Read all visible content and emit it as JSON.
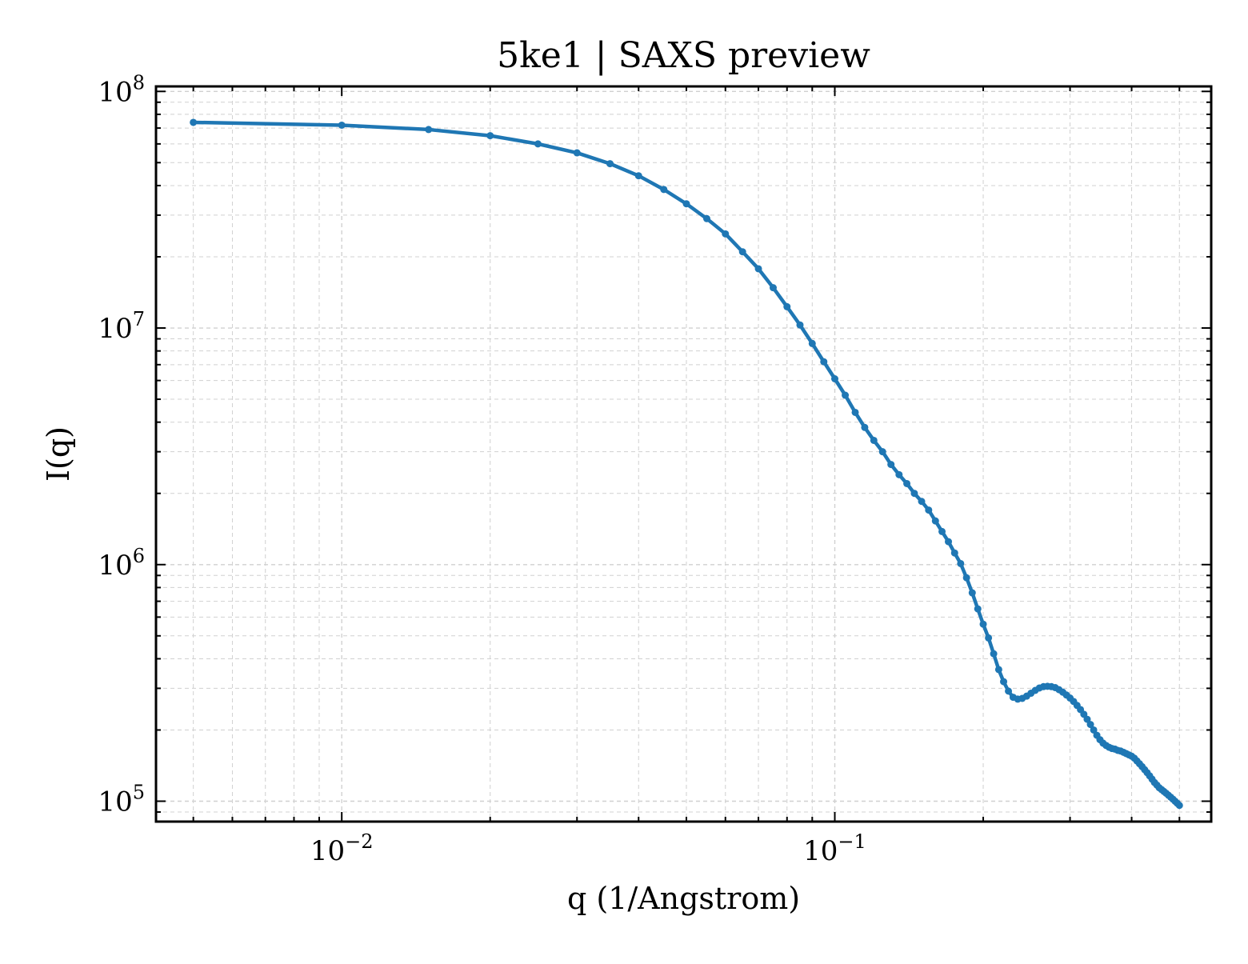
{
  "chart_data": {
    "type": "line",
    "title": "5ke1 | SAXS preview",
    "xlabel": "q (1/Angstrom)",
    "ylabel": "I(q)",
    "xscale": "log",
    "yscale": "log",
    "xlim": [
      0.0042,
      0.58
    ],
    "ylim": [
      82000,
      105000000
    ],
    "grid": true,
    "legend": "none",
    "colors": {
      "series": "#1f77b4",
      "grid": "#d0d0d0",
      "axes": "#000000"
    },
    "x_ticks": [
      {
        "value": 0.01,
        "base": "10",
        "exp": "−2"
      },
      {
        "value": 0.1,
        "base": "10",
        "exp": "−1"
      }
    ],
    "y_ticks": [
      {
        "value": 100000,
        "base": "10",
        "exp": "5"
      },
      {
        "value": 1000000,
        "base": "10",
        "exp": "6"
      },
      {
        "value": 10000000,
        "base": "10",
        "exp": "7"
      },
      {
        "value": 100000000,
        "base": "10",
        "exp": "8"
      }
    ],
    "series": [
      {
        "x": [
          0.005,
          0.01,
          0.015,
          0.02,
          0.025,
          0.03,
          0.035,
          0.04,
          0.045,
          0.05,
          0.055,
          0.06,
          0.065,
          0.07,
          0.075,
          0.08,
          0.085,
          0.09,
          0.095,
          0.1,
          0.105,
          0.11,
          0.115,
          0.12,
          0.125,
          0.13,
          0.135,
          0.14,
          0.145,
          0.15,
          0.155,
          0.16,
          0.165,
          0.17,
          0.175,
          0.18,
          0.185,
          0.19,
          0.195,
          0.2,
          0.205,
          0.21,
          0.215,
          0.22,
          0.225,
          0.23,
          0.235,
          0.24,
          0.245,
          0.25,
          0.255,
          0.26,
          0.265,
          0.27,
          0.275,
          0.28,
          0.285,
          0.29,
          0.295,
          0.3,
          0.305,
          0.31,
          0.315,
          0.32,
          0.325,
          0.33,
          0.335,
          0.34,
          0.345,
          0.35,
          0.355,
          0.36,
          0.365,
          0.37,
          0.375,
          0.38,
          0.385,
          0.39,
          0.395,
          0.4,
          0.405,
          0.41,
          0.415,
          0.42,
          0.425,
          0.43,
          0.435,
          0.44,
          0.445,
          0.45,
          0.455,
          0.46,
          0.465,
          0.47,
          0.475,
          0.48,
          0.485,
          0.49,
          0.495,
          0.5
        ],
        "y": [
          74000000,
          72000000,
          69000000,
          65000000,
          60000000,
          55000000,
          49500000,
          44000000,
          38500000,
          33500000,
          29000000,
          25000000,
          21000000,
          17800000,
          14800000,
          12300000,
          10300000,
          8600000,
          7200000,
          6100000,
          5200000,
          4400000,
          3800000,
          3350000,
          3000000,
          2650000,
          2400000,
          2200000,
          2000000,
          1850000,
          1700000,
          1530000,
          1380000,
          1250000,
          1120000,
          1010000,
          880000,
          760000,
          650000,
          560000,
          490000,
          420000,
          360000,
          320000,
          292000,
          275000,
          270000,
          272000,
          278000,
          286000,
          294000,
          301000,
          305000,
          306000,
          305000,
          302000,
          296000,
          289000,
          281000,
          273000,
          264000,
          254000,
          244000,
          233000,
          222000,
          211000,
          200000,
          190000,
          182000,
          176000,
          172000,
          169000,
          167000,
          166000,
          164000,
          163000,
          161000,
          159000,
          157000,
          155000,
          152000,
          148000,
          144000,
          140000,
          136000,
          132000,
          128000,
          124000,
          120000,
          117000,
          114000,
          112000,
          110000,
          108000,
          106000,
          104000,
          102000,
          100000,
          98000,
          96000
        ]
      }
    ]
  }
}
